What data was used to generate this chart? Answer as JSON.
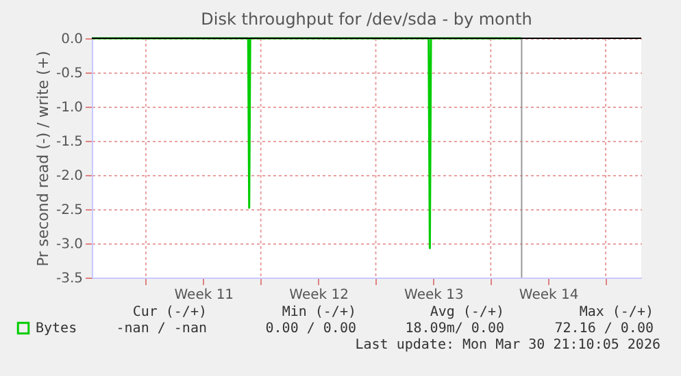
{
  "chart_data": {
    "type": "line",
    "title": "Disk throughput for /dev/sda - by month",
    "ylabel": "Pr second read (-) / write (+)",
    "x": [
      "2026-03-04T17:00",
      "2026-03-14T05:30",
      "2026-03-14T07:00",
      "2026-03-14T08:30",
      "2026-03-25T05:15",
      "2026-03-25T07:00",
      "2026-03-25T08:40",
      "2026-03-30T21:10"
    ],
    "series": [
      {
        "name": "Bytes",
        "color": "#00cc00",
        "values": [
          0,
          0,
          -2.48,
          0,
          0,
          -3.07,
          0,
          0
        ]
      }
    ],
    "xlim": [
      "2026-03-04T17:00",
      "2026-04-07T04:00"
    ],
    "xticks": [
      {
        "value": "2026-03-08",
        "label": null
      },
      {
        "value": "2026-03-11T12:00",
        "label": "Week 11"
      },
      {
        "value": "2026-03-15",
        "label": null
      },
      {
        "value": "2026-03-18T12:00",
        "label": "Week 12"
      },
      {
        "value": "2026-03-22",
        "label": null
      },
      {
        "value": "2026-03-25T12:00",
        "label": "Week 13"
      },
      {
        "value": "2026-03-29",
        "label": null
      },
      {
        "value": "2026-04-01T12:00",
        "label": "Week 14"
      },
      {
        "value": "2026-04-05",
        "label": null
      }
    ],
    "ylim": [
      -3.5,
      0
    ],
    "yticks": [
      {
        "value": -3.5,
        "label": "-3.5"
      },
      {
        "value": -3,
        "label": "-3.0"
      },
      {
        "value": -2.5,
        "label": "-2.5"
      },
      {
        "value": -2,
        "label": "-2.0"
      },
      {
        "value": -1.5,
        "label": "-1.5"
      },
      {
        "value": -1,
        "label": "-1.0"
      },
      {
        "value": -0.5,
        "label": "-0.5"
      },
      {
        "value": 0,
        "label": "0.0"
      }
    ],
    "ref_lines": [
      {
        "axis": "x",
        "value": "2026-03-30T21:10",
        "label": null,
        "color": "#999999"
      }
    ],
    "annotations": [
      "Cur (-/+)",
      "Min (-/+)",
      "Avg (-/+)",
      "Max (-/+)",
      "-nan /  -nan",
      "0.00 /  0.00",
      "18.09m/  0.00",
      "72.16 /  0.00",
      "Last update: Mon Mar 30 21:10:05 2026"
    ],
    "grid": true,
    "legend": "bottom",
    "marker": "none",
    "line_style": "solid"
  }
}
